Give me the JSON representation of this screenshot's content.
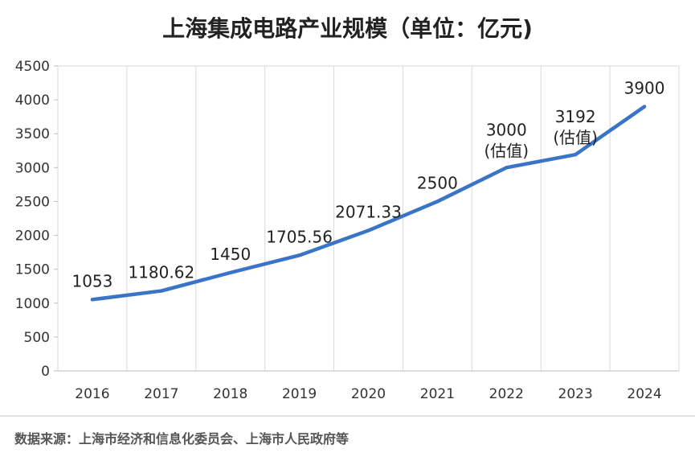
{
  "chart_data": {
    "type": "line",
    "title": "上海集成电路产业规模（单位：亿元)",
    "categories": [
      "2016",
      "2017",
      "2018",
      "2019",
      "2020",
      "2021",
      "2022",
      "2023",
      "2024"
    ],
    "series": [
      {
        "values": [
          1053,
          1180.62,
          1450,
          1705.56,
          2071.33,
          2500,
          3000,
          3192,
          3900
        ],
        "labels": [
          "1053",
          "1180.62",
          "1450",
          "1705.56",
          "2071.33",
          "2500",
          "3000",
          "3192",
          "3900"
        ],
        "notes": [
          "",
          "",
          "",
          "",
          "",
          "",
          "(估值)",
          "(估值)",
          ""
        ],
        "color": "#3a74c9"
      }
    ],
    "ylim": [
      0,
      4500
    ],
    "yticks": [
      "0",
      "500",
      "1000",
      "1500",
      "2000",
      "2500",
      "3000",
      "3500",
      "4000",
      "4500"
    ],
    "grid": "vertical",
    "legend": "none"
  },
  "source": "数据来源：上海市经济和信息化委员会、上海市人民政府等"
}
